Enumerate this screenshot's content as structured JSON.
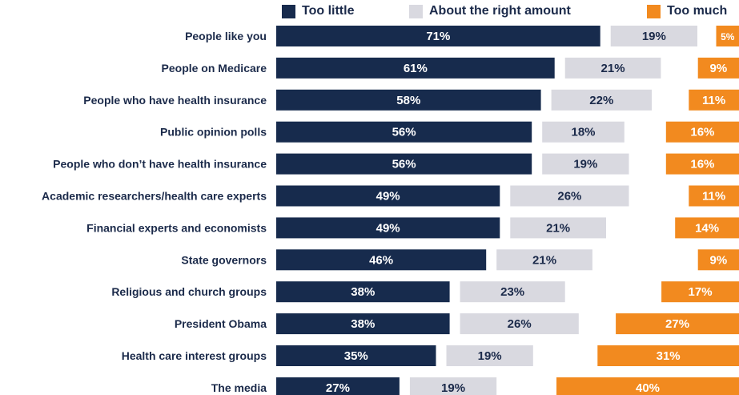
{
  "chart_data": {
    "type": "bar",
    "stacked": "diverging-segments",
    "legend_position": "top",
    "grid": false,
    "xlabel": "",
    "ylabel": "",
    "colors": {
      "too_little": "#172b4d",
      "about_right": "#d9d9e0",
      "too_much": "#f28a1f",
      "label_on_dark": "#ffffff",
      "label_on_light": "#1b2a4a",
      "category_text": "#1b2a4a"
    },
    "categories": [
      "People like you",
      "People on Medicare",
      "People who have health insurance",
      "Public opinion polls",
      "People who don’t have health insurance",
      "Academic researchers/health care experts",
      "Financial experts and economists",
      "State governors",
      "Religious and church groups",
      "President Obama",
      "Health care interest groups",
      "The media"
    ],
    "series": [
      {
        "name": "Too little",
        "values": [
          71,
          61,
          58,
          56,
          56,
          49,
          49,
          46,
          38,
          38,
          35,
          27
        ],
        "labels": [
          "71%",
          "61%",
          "58%",
          "56%",
          "56%",
          "49%",
          "49%",
          "46%",
          "38%",
          "38%",
          "35%",
          "27%"
        ]
      },
      {
        "name": "About the right amount",
        "values": [
          19,
          21,
          22,
          18,
          19,
          26,
          21,
          21,
          23,
          26,
          19,
          19
        ],
        "labels": [
          "19%",
          "21%",
          "22%",
          "18%",
          "19%",
          "26%",
          "21%",
          "21%",
          "23%",
          "26%",
          "19%",
          "19%"
        ]
      },
      {
        "name": "Too much",
        "values": [
          5,
          9,
          11,
          16,
          16,
          11,
          14,
          9,
          17,
          27,
          31,
          40
        ],
        "labels": [
          "5%",
          "9%",
          "11%",
          "16%",
          "16%",
          "11%",
          "14%",
          "9%",
          "17%",
          "27%",
          "31%",
          "40%"
        ]
      }
    ]
  }
}
